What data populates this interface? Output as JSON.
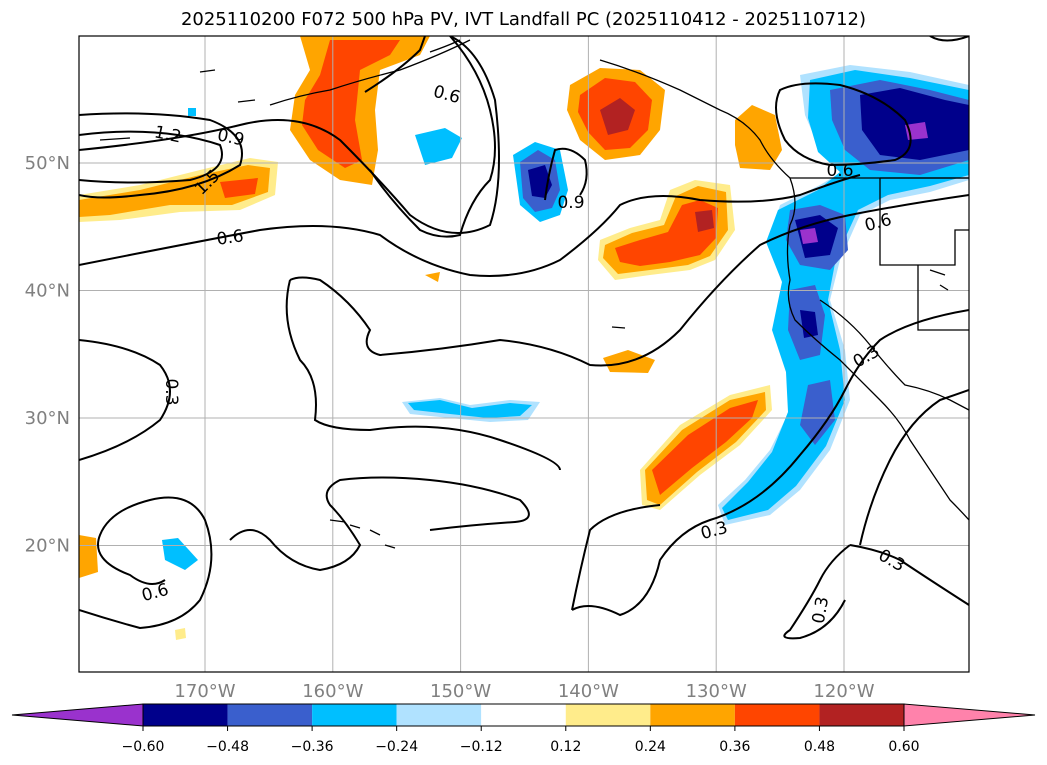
{
  "title": "2025110200 F072 500 hPa PV, IVT Landfall PC (2025110412 - 2025110712)",
  "colors": {
    "neg_060": "#9a32cd",
    "neg_048": "#00008b",
    "neg_036": "#3a5fcd",
    "neg_024": "#00bfff",
    "neg_012": "#b0e2ff",
    "neutral": "#ffffff",
    "pos_012": "#ffec8b",
    "pos_024": "#ffa500",
    "pos_036": "#ff4500",
    "pos_048": "#b22222",
    "pos_060": "#ff82ab"
  },
  "map": {
    "lat_ticks": [
      {
        "lat": 50,
        "label": "50°N"
      },
      {
        "lat": 40,
        "label": "40°N"
      },
      {
        "lat": 30,
        "label": "30°N"
      },
      {
        "lat": 20,
        "label": "20°N"
      }
    ],
    "lon_ticks": [
      {
        "lon": -170,
        "label": "170°W"
      },
      {
        "lon": -160,
        "label": "160°W"
      },
      {
        "lon": -150,
        "label": "150°W"
      },
      {
        "lon": -140,
        "label": "140°W"
      },
      {
        "lon": -130,
        "label": "130°W"
      },
      {
        "lon": -120,
        "label": "120°W"
      }
    ],
    "contour_labels": [
      "1.2",
      "0.9",
      "1.5",
      "0.6",
      "0.6",
      "0.6",
      "0.9",
      "0.3",
      "0.6",
      "0.3",
      "0.3",
      "0.3",
      "0.3",
      "0.6"
    ]
  },
  "colorbar": {
    "labels": [
      "−0.60",
      "−0.48",
      "−0.36",
      "−0.24",
      "−0.12",
      "0.12",
      "0.24",
      "0.36",
      "0.48",
      "0.60"
    ]
  }
}
